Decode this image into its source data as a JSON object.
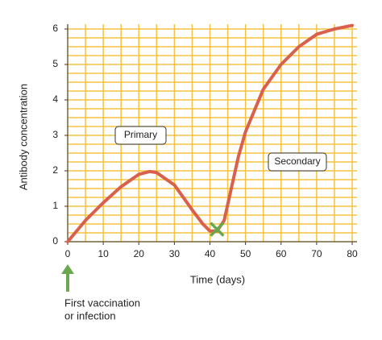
{
  "chart_data": {
    "type": "line",
    "xlabel": "Time (days)",
    "ylabel": "Antibody concentration",
    "x": [
      0,
      5,
      10,
      15,
      20,
      23,
      25,
      30,
      35,
      38,
      40,
      42,
      44,
      46,
      48,
      50,
      55,
      60,
      65,
      70,
      75,
      80
    ],
    "series": [
      {
        "color": "#d9604a",
        "values": [
          0,
          0.6,
          1.1,
          1.55,
          1.9,
          1.98,
          1.95,
          1.6,
          0.9,
          0.5,
          0.3,
          0.3,
          0.6,
          1.5,
          2.4,
          3.1,
          4.3,
          5.0,
          5.5,
          5.85,
          6.0,
          6.1
        ]
      }
    ],
    "xlim": [
      0,
      80
    ],
    "ylim": [
      0,
      6
    ],
    "xticks": [
      0,
      10,
      20,
      30,
      40,
      50,
      60,
      70,
      80
    ],
    "yticks": [
      0,
      1,
      2,
      3,
      4,
      5,
      6
    ],
    "grid": true,
    "grid_color": "#f5c242",
    "marker": {
      "x": 42,
      "y": 0.35,
      "color": "#6aa84f"
    },
    "annotations": [
      "Primary",
      "Secondary"
    ],
    "footnote": [
      "First vaccination",
      "or infection"
    ]
  }
}
